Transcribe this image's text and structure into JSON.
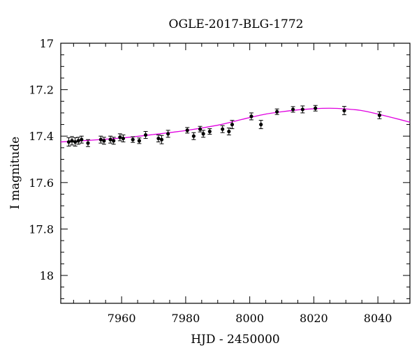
{
  "chart_data": {
    "type": "scatter",
    "title": "OGLE-2017-BLG-1772",
    "xlabel": "HJD - 2450000",
    "ylabel": "I magnitude",
    "xlim": [
      7941,
      8050
    ],
    "ylim": [
      17,
      18.12
    ],
    "y_inverted": true,
    "x_ticks": [
      7960,
      7980,
      8000,
      8020,
      8040
    ],
    "y_ticks": [
      17,
      17.2,
      17.4,
      17.6,
      17.8,
      18
    ],
    "y_tick_labels": [
      "17",
      "17.2",
      "17.4",
      "17.6",
      "17.8",
      "18"
    ],
    "series": [
      {
        "type": "scatter",
        "points": [
          {
            "x": 7943.5,
            "y": 17.425,
            "err": 0.018
          },
          {
            "x": 7944.5,
            "y": 17.42,
            "err": 0.018
          },
          {
            "x": 7945.5,
            "y": 17.425,
            "err": 0.018
          },
          {
            "x": 7946.5,
            "y": 17.42,
            "err": 0.015
          },
          {
            "x": 7947.5,
            "y": 17.415,
            "err": 0.015
          },
          {
            "x": 7949.5,
            "y": 17.43,
            "err": 0.015
          },
          {
            "x": 7953.5,
            "y": 17.415,
            "err": 0.015
          },
          {
            "x": 7954.5,
            "y": 17.42,
            "err": 0.015
          },
          {
            "x": 7956.5,
            "y": 17.415,
            "err": 0.015
          },
          {
            "x": 7957.5,
            "y": 17.42,
            "err": 0.015
          },
          {
            "x": 7959.5,
            "y": 17.405,
            "err": 0.015
          },
          {
            "x": 7960.5,
            "y": 17.41,
            "err": 0.015
          },
          {
            "x": 7963.5,
            "y": 17.415,
            "err": 0.012
          },
          {
            "x": 7965.5,
            "y": 17.42,
            "err": 0.012
          },
          {
            "x": 7967.5,
            "y": 17.395,
            "err": 0.015
          },
          {
            "x": 7971.5,
            "y": 17.41,
            "err": 0.015
          },
          {
            "x": 7972.5,
            "y": 17.415,
            "err": 0.018
          },
          {
            "x": 7974.5,
            "y": 17.39,
            "err": 0.015
          },
          {
            "x": 7980.5,
            "y": 17.375,
            "err": 0.012
          },
          {
            "x": 7982.5,
            "y": 17.4,
            "err": 0.015
          },
          {
            "x": 7984.5,
            "y": 17.37,
            "err": 0.012
          },
          {
            "x": 7985.5,
            "y": 17.39,
            "err": 0.015
          },
          {
            "x": 7987.5,
            "y": 17.38,
            "err": 0.012
          },
          {
            "x": 7991.5,
            "y": 17.37,
            "err": 0.015
          },
          {
            "x": 7993.5,
            "y": 17.38,
            "err": 0.015
          },
          {
            "x": 7994.5,
            "y": 17.35,
            "err": 0.018
          },
          {
            "x": 8000.5,
            "y": 17.315,
            "err": 0.015
          },
          {
            "x": 8003.5,
            "y": 17.35,
            "err": 0.018
          },
          {
            "x": 8008.5,
            "y": 17.295,
            "err": 0.012
          },
          {
            "x": 8013.5,
            "y": 17.285,
            "err": 0.012
          },
          {
            "x": 8016.5,
            "y": 17.285,
            "err": 0.015
          },
          {
            "x": 8020.5,
            "y": 17.28,
            "err": 0.012
          },
          {
            "x": 8029.5,
            "y": 17.29,
            "err": 0.018
          },
          {
            "x": 8040.5,
            "y": 17.31,
            "err": 0.015
          }
        ]
      },
      {
        "type": "line",
        "color": "#e000e0",
        "x": [
          7941,
          7950,
          7960,
          7970,
          7980,
          7990,
          7995,
          8000,
          8005,
          8010,
          8015,
          8020,
          8025,
          8030,
          8035,
          8040,
          8045,
          8050
        ],
        "y": [
          17.425,
          17.418,
          17.408,
          17.393,
          17.376,
          17.353,
          17.337,
          17.32,
          17.305,
          17.295,
          17.287,
          17.282,
          17.28,
          17.283,
          17.29,
          17.305,
          17.322,
          17.34
        ]
      }
    ]
  }
}
